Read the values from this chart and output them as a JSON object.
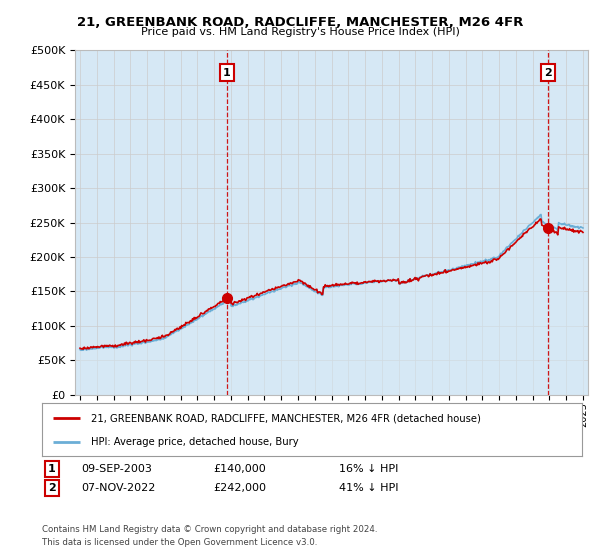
{
  "title": "21, GREENBANK ROAD, RADCLIFFE, MANCHESTER, M26 4FR",
  "subtitle": "Price paid vs. HM Land Registry's House Price Index (HPI)",
  "hpi_label": "HPI: Average price, detached house, Bury",
  "property_label": "21, GREENBANK ROAD, RADCLIFFE, MANCHESTER, M26 4FR (detached house)",
  "marker1_date": "09-SEP-2003",
  "marker1_price": 140000,
  "marker1_text": "16% ↓ HPI",
  "marker2_date": "07-NOV-2022",
  "marker2_price": 242000,
  "marker2_text": "41% ↓ HPI",
  "footer1": "Contains HM Land Registry data © Crown copyright and database right 2024.",
  "footer2": "This data is licensed under the Open Government Licence v3.0.",
  "hpi_color": "#6baed6",
  "hpi_fill_color": "#d6e8f5",
  "property_color": "#cc0000",
  "marker_color": "#cc0000",
  "background_color": "#ffffff",
  "grid_color": "#cccccc",
  "ylim": [
    0,
    500000
  ],
  "yticks": [
    0,
    50000,
    100000,
    150000,
    200000,
    250000,
    300000,
    350000,
    400000,
    450000,
    500000
  ],
  "marker1_x": 2003.75,
  "marker2_x": 2022.917
}
